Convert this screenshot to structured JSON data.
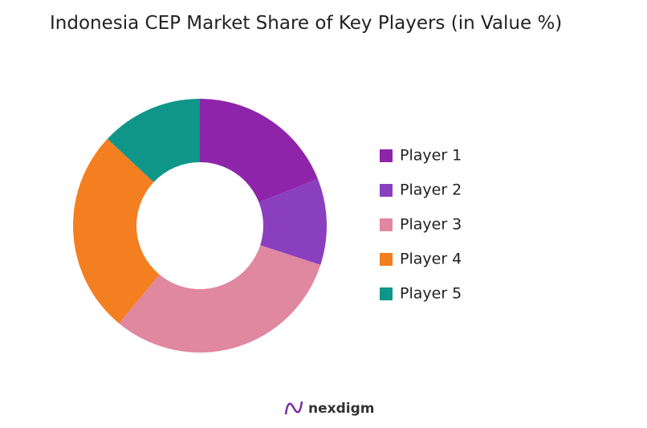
{
  "chart_data": {
    "type": "donut",
    "title": "Indonesia CEP Market Share of Key Players (in Value %)",
    "categories": [
      "Player 1",
      "Player 2",
      "Player 3",
      "Player 4",
      "Player 5"
    ],
    "values": [
      19,
      11,
      31,
      26,
      13
    ],
    "colors": [
      "#8e24aa",
      "#8a3fbf",
      "#e088a0",
      "#f47f20",
      "#0f9688"
    ],
    "legend": "right"
  },
  "watermark": "nexdigm"
}
